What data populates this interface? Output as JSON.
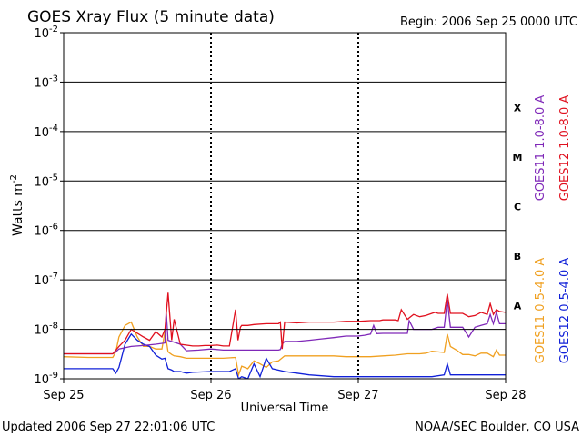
{
  "chart_data": {
    "type": "line",
    "title": "GOES Xray Flux (5 minute data)",
    "begin_label": "Begin:  2006 Sep 25 0000 UTC",
    "ylabel_main": "Watts m",
    "ylabel_exp": "-2",
    "xlabel": "Universal Time",
    "x_ticks": [
      "Sep 25",
      "Sep 26",
      "Sep 27",
      "Sep 28"
    ],
    "xlim": [
      0,
      72
    ],
    "x_units": "hours since 2006 Sep 25 0000 UTC",
    "y_scale": "log",
    "ylim": [
      1e-09,
      0.01
    ],
    "y_tick_exponents": [
      "-2",
      "-3",
      "-4",
      "-5",
      "-6",
      "-7",
      "-8",
      "-9"
    ],
    "y_tick_base": "10",
    "flare_classes": [
      {
        "label": "X",
        "decade": -3.5
      },
      {
        "label": "M",
        "decade": -4.5
      },
      {
        "label": "C",
        "decade": -5.5
      },
      {
        "label": "B",
        "decade": -6.5
      },
      {
        "label": "A",
        "decade": -7.5
      }
    ],
    "series": [
      {
        "name": "GOES11 1.0-8.0 A",
        "color": "#7f28b8",
        "x": [
          0,
          8,
          8.5,
          9,
          11,
          13,
          15,
          16.5,
          16.7,
          17,
          18,
          19,
          20,
          22,
          24,
          26,
          28,
          32,
          35,
          35.3,
          35.6,
          36,
          38,
          40,
          42,
          44,
          46,
          48,
          49,
          50,
          50.5,
          51,
          52,
          53,
          54,
          55,
          56,
          56.3,
          57,
          58,
          60,
          61,
          62,
          62.5,
          63,
          64,
          65,
          66,
          67,
          68,
          69,
          69.5,
          70,
          70.5,
          71,
          72
        ],
        "y": [
          3.2e-09,
          3.2e-09,
          3.5e-09,
          4e-09,
          4.5e-09,
          4.7e-09,
          5e-09,
          5.3e-09,
          2.4e-08,
          6e-09,
          5.5e-09,
          5e-09,
          3.7e-09,
          3.8e-09,
          4e-09,
          3.8e-09,
          3.8e-09,
          3.8e-09,
          3.8e-09,
          3.9e-09,
          5e-09,
          5.7e-09,
          5.7e-09,
          6e-09,
          6.4e-09,
          6.8e-09,
          7.3e-09,
          7.3e-09,
          7.6e-09,
          8e-09,
          1.2e-08,
          8.2e-09,
          8.3e-09,
          8.3e-09,
          8.3e-09,
          8.3e-09,
          8.3e-09,
          1.5e-08,
          1e-08,
          1e-08,
          1e-08,
          1.1e-08,
          1.1e-08,
          4e-08,
          1.1e-08,
          1.1e-08,
          1.1e-08,
          7e-09,
          1.1e-08,
          1.2e-08,
          1.3e-08,
          2e-08,
          1.3e-08,
          2.2e-08,
          1.3e-08,
          1.3e-08
        ]
      },
      {
        "name": "GOES12 1.0-8.0 A",
        "color": "#e0101e",
        "x": [
          0,
          8,
          9,
          10,
          11,
          13,
          14,
          15,
          16,
          16.5,
          17,
          17.6,
          18,
          19,
          21,
          21.5,
          22,
          23,
          24,
          25,
          26,
          27,
          28,
          28.4,
          28.8,
          29,
          30,
          31,
          33,
          35,
          35.3,
          35.6,
          36,
          38,
          40,
          42,
          44,
          46,
          48,
          50,
          51,
          51.5,
          52,
          54,
          54.5,
          55,
          56,
          57,
          58,
          59,
          60,
          60.5,
          61,
          62,
          62.5,
          63,
          64,
          65,
          66,
          67,
          68,
          69,
          69.5,
          70,
          70.5,
          71,
          72
        ],
        "y": [
          3.2e-09,
          3.2e-09,
          4.5e-09,
          6e-09,
          1e-08,
          7e-09,
          6e-09,
          9e-09,
          7e-09,
          1e-08,
          5.5e-08,
          6e-09,
          1.6e-08,
          5e-09,
          4.6e-09,
          4.6e-09,
          4.6e-09,
          4.7e-09,
          4.7e-09,
          4.8e-09,
          4.6e-09,
          4.6e-09,
          2.5e-08,
          6e-09,
          1.1e-08,
          1.2e-08,
          1.2e-08,
          1.25e-08,
          1.3e-08,
          1.3e-08,
          1.4e-08,
          4e-09,
          1.4e-08,
          1.35e-08,
          1.4e-08,
          1.4e-08,
          1.4e-08,
          1.45e-08,
          1.45e-08,
          1.5e-08,
          1.5e-08,
          1.5e-08,
          1.55e-08,
          1.55e-08,
          1.5e-08,
          2.5e-08,
          1.6e-08,
          2e-08,
          1.8e-08,
          1.9e-08,
          2.1e-08,
          2.2e-08,
          2.1e-08,
          2.1e-08,
          5.2e-08,
          2.1e-08,
          2.1e-08,
          2.1e-08,
          1.8e-08,
          1.9e-08,
          2.2e-08,
          2e-08,
          3.3e-08,
          2e-08,
          2.5e-08,
          2.3e-08,
          2.2e-08
        ]
      },
      {
        "name": "GOES11 0.5-4.0 A",
        "color": "#f0a020",
        "x": [
          0,
          4,
          8,
          8.5,
          9,
          10,
          11,
          12,
          13,
          14,
          15,
          16,
          16.5,
          17,
          17.6,
          18,
          19,
          20,
          24,
          26,
          28,
          28.5,
          29,
          30,
          31,
          32,
          33,
          34,
          35,
          36,
          40,
          44,
          46,
          48,
          50,
          52,
          54,
          56,
          58,
          59,
          60,
          61,
          62,
          62.5,
          63,
          64,
          65,
          66,
          67,
          68,
          69,
          70,
          70.5,
          71,
          72
        ],
        "y": [
          2.8e-09,
          2.7e-09,
          2.7e-09,
          3.5e-09,
          7e-09,
          1.2e-08,
          1.4e-08,
          7e-09,
          4.5e-09,
          4.5e-09,
          4e-09,
          4e-09,
          9e-09,
          3.5e-09,
          3.1e-09,
          2.9e-09,
          2.8e-09,
          2.6e-09,
          2.6e-09,
          2.6e-09,
          2.7e-09,
          1.2e-09,
          1.8e-09,
          1.6e-09,
          2.3e-09,
          2e-09,
          1.7e-09,
          2.2e-09,
          2.3e-09,
          2.9e-09,
          2.9e-09,
          2.9e-09,
          2.8e-09,
          2.8e-09,
          2.8e-09,
          2.9e-09,
          3e-09,
          3.2e-09,
          3.2e-09,
          3.3e-09,
          3.6e-09,
          3.5e-09,
          3.4e-09,
          8e-09,
          4.5e-09,
          3.8e-09,
          3.1e-09,
          3.1e-09,
          2.9e-09,
          3.3e-09,
          3.3e-09,
          2.8e-09,
          3.8e-09,
          3e-09,
          3e-09
        ]
      },
      {
        "name": "GOES12 0.5-4.0 A",
        "color": "#1020d8",
        "x": [
          0,
          8,
          8.5,
          9,
          10,
          11,
          12,
          13,
          14,
          15,
          16,
          16.5,
          17,
          17.6,
          18,
          19,
          20,
          21,
          24,
          25,
          26,
          27,
          28,
          28.5,
          29,
          30,
          31,
          32,
          33,
          34,
          36,
          38,
          40,
          44,
          46,
          48,
          50,
          52,
          54,
          56,
          58,
          60,
          62,
          62.5,
          63,
          64,
          66,
          68,
          70,
          72
        ],
        "y": [
          1.6e-09,
          1.6e-09,
          1.3e-09,
          1.7e-09,
          5e-09,
          8e-09,
          6e-09,
          5e-09,
          4.5e-09,
          3e-09,
          2.5e-09,
          2.6e-09,
          1.6e-09,
          1.5e-09,
          1.4e-09,
          1.4e-09,
          1.3e-09,
          1.35e-09,
          1.4e-09,
          1.4e-09,
          1.4e-09,
          1.4e-09,
          1.6e-09,
          1e-09,
          1.1e-09,
          1e-09,
          2e-09,
          1.1e-09,
          2.6e-09,
          1.6e-09,
          1.4e-09,
          1.3e-09,
          1.2e-09,
          1.1e-09,
          1.1e-09,
          1.1e-09,
          1.1e-09,
          1.1e-09,
          1.1e-09,
          1.1e-09,
          1.1e-09,
          1.1e-09,
          1.2e-09,
          2e-09,
          1.2e-09,
          1.2e-09,
          1.2e-09,
          1.2e-09,
          1.2e-09,
          1.2e-09
        ]
      }
    ],
    "footer_left": "Updated 2006 Sep 27 22:01:06 UTC",
    "footer_right": "NOAA/SEC Boulder, CO USA"
  }
}
